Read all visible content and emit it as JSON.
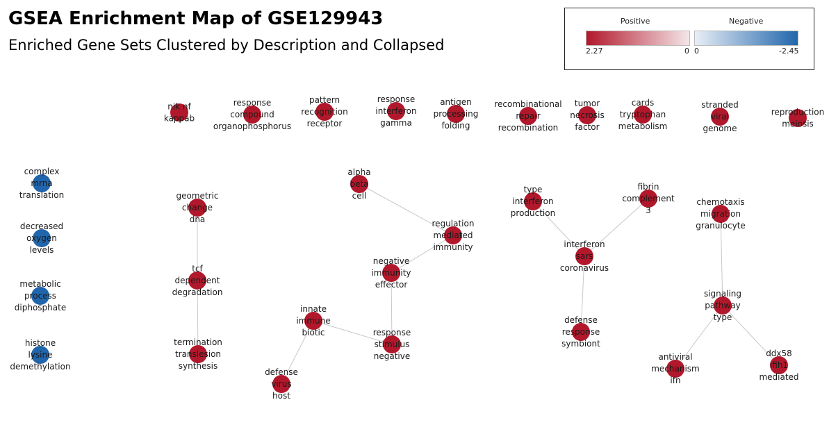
{
  "title": "GSEA Enrichment Map of GSE129943",
  "subtitle": "Enriched Gene Sets Clustered by Description and Collapsed",
  "legend": {
    "positive_label": "Positive",
    "negative_label": "Negative",
    "pos_max": "2.27",
    "pos_zero": "0",
    "neg_zero": "0",
    "neg_min": "-2.45",
    "colors": {
      "positive": "#b2182b",
      "negative": "#2166ac"
    }
  },
  "nodes": [
    {
      "id": "nik",
      "label": [
        "nik nf",
        "kappab"
      ],
      "polarity": "positive"
    },
    {
      "id": "compound",
      "label": [
        "response",
        "compound",
        "organophosphorus"
      ],
      "polarity": "positive"
    },
    {
      "id": "pattern",
      "label": [
        "pattern",
        "recognition",
        "receptor"
      ],
      "polarity": "positive"
    },
    {
      "id": "ifng",
      "label": [
        "response",
        "interferon",
        "gamma"
      ],
      "polarity": "positive"
    },
    {
      "id": "antigen",
      "label": [
        "antigen",
        "processing",
        "folding"
      ],
      "polarity": "positive"
    },
    {
      "id": "recomb",
      "label": [
        "recombinational",
        "repair",
        "recombination"
      ],
      "polarity": "positive"
    },
    {
      "id": "tnf",
      "label": [
        "tumor",
        "necrosis",
        "factor"
      ],
      "polarity": "positive"
    },
    {
      "id": "cards",
      "label": [
        "cards",
        "tryptophan",
        "metabolism"
      ],
      "polarity": "positive"
    },
    {
      "id": "stranded",
      "label": [
        "stranded",
        "viral",
        "genome"
      ],
      "polarity": "positive"
    },
    {
      "id": "repro",
      "label": [
        "reproduction",
        "meiosis"
      ],
      "polarity": "positive"
    },
    {
      "id": "mrna",
      "label": [
        "complex",
        "mrna",
        "translation"
      ],
      "polarity": "negative"
    },
    {
      "id": "oxygen",
      "label": [
        "decreased",
        "oxygen",
        "levels"
      ],
      "polarity": "negative"
    },
    {
      "id": "diphos",
      "label": [
        "metabolic",
        "process",
        "diphosphate"
      ],
      "polarity": "negative"
    },
    {
      "id": "histone",
      "label": [
        "histone",
        "lysine",
        "demethylation"
      ],
      "polarity": "negative"
    },
    {
      "id": "geometric",
      "label": [
        "geometric",
        "change",
        "dna"
      ],
      "polarity": "positive"
    },
    {
      "id": "tcf",
      "label": [
        "tcf",
        "dependent",
        "degradation"
      ],
      "polarity": "positive"
    },
    {
      "id": "termination",
      "label": [
        "termination",
        "translesion",
        "synthesis"
      ],
      "polarity": "positive"
    },
    {
      "id": "alpha",
      "label": [
        "alpha",
        "beta",
        "cell"
      ],
      "polarity": "positive"
    },
    {
      "id": "regulation",
      "label": [
        "regulation",
        "mediated",
        "immunity"
      ],
      "polarity": "positive"
    },
    {
      "id": "negimm",
      "label": [
        "negative",
        "immunity",
        "effector"
      ],
      "polarity": "positive"
    },
    {
      "id": "innate",
      "label": [
        "innate",
        "immune",
        "biotic"
      ],
      "polarity": "positive"
    },
    {
      "id": "stimulus",
      "label": [
        "response",
        "stimulus",
        "negative"
      ],
      "polarity": "positive"
    },
    {
      "id": "defvirus",
      "label": [
        "defense",
        "virus",
        "host"
      ],
      "polarity": "positive"
    },
    {
      "id": "typeifn",
      "label": [
        "type",
        "interferon",
        "production"
      ],
      "polarity": "positive"
    },
    {
      "id": "fibrin",
      "label": [
        "fibrin",
        "complement",
        "3"
      ],
      "polarity": "positive"
    },
    {
      "id": "sars",
      "label": [
        "interferon",
        "sars",
        "coronavirus"
      ],
      "polarity": "positive"
    },
    {
      "id": "symbiont",
      "label": [
        "defense",
        "response",
        "symbiont"
      ],
      "polarity": "positive"
    },
    {
      "id": "chemotaxis",
      "label": [
        "chemotaxis",
        "migration",
        "granulocyte"
      ],
      "polarity": "positive"
    },
    {
      "id": "signaling",
      "label": [
        "signaling",
        "pathway",
        "type"
      ],
      "polarity": "positive"
    },
    {
      "id": "antiviral",
      "label": [
        "antiviral",
        "mechanism",
        "ifn"
      ],
      "polarity": "positive"
    },
    {
      "id": "ddx58",
      "label": [
        "ddx58",
        "ifih1",
        "mediated"
      ],
      "polarity": "positive"
    }
  ],
  "edges": [
    [
      "geometric",
      "tcf"
    ],
    [
      "tcf",
      "termination"
    ],
    [
      "alpha",
      "regulation"
    ],
    [
      "regulation",
      "negimm"
    ],
    [
      "negimm",
      "stimulus"
    ],
    [
      "innate",
      "stimulus"
    ],
    [
      "innate",
      "defvirus"
    ],
    [
      "typeifn",
      "sars"
    ],
    [
      "fibrin",
      "sars"
    ],
    [
      "sars",
      "symbiont"
    ],
    [
      "chemotaxis",
      "signaling"
    ],
    [
      "signaling",
      "antiviral"
    ],
    [
      "signaling",
      "ddx58"
    ]
  ]
}
